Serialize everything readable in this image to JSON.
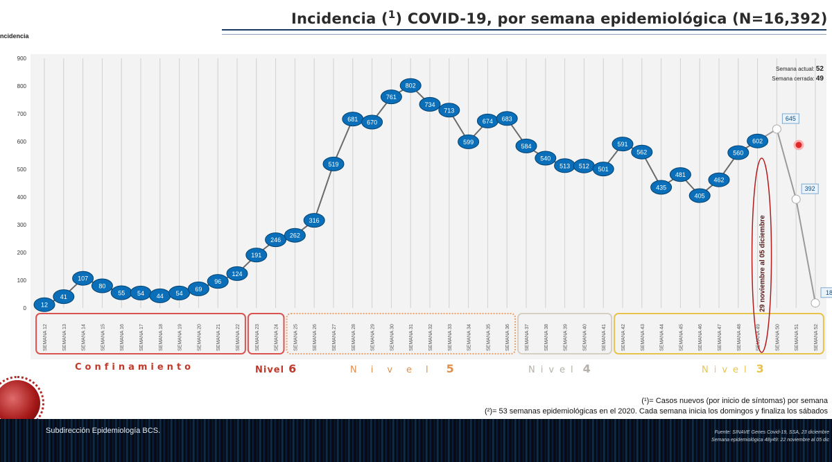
{
  "header": {
    "title": "Incidencia (",
    "title_sup": "1",
    "title_rest": ") COVID-19, por semana epidemiológica (N=16,392)"
  },
  "chart_data": {
    "type": "line",
    "title": "Incidencia (1) COVID-19, por semana epidemiológica (N=16,392)",
    "ylabel": "ncidencia",
    "xlabel": "",
    "ylim": [
      0,
      900
    ],
    "yticks": [
      0,
      100,
      200,
      300,
      400,
      500,
      600,
      700,
      800,
      900
    ],
    "grid": true,
    "categories": [
      "SEMANA 12",
      "SEMANA 13",
      "SEMANA 14",
      "SEMANA 15",
      "SEMANA 16",
      "SEMANA 17",
      "SEMANA 18",
      "SEMANA 19",
      "SEMANA 20",
      "SEMANA 21",
      "SEMANA 22",
      "SEMANA 23",
      "SEMANA 24",
      "SEMANA 25",
      "SEMANA 26",
      "SEMANA 27",
      "SEMANA 28",
      "SEMANA 29",
      "SEMANA 30",
      "SEMANA 31",
      "SEMANA 32",
      "SEMANA 33",
      "SEMANA 34",
      "SEMANA 35",
      "SEMANA 36",
      "SEMANA 37",
      "SEMANA 38",
      "SEMANA 39",
      "SEMANA 40",
      "SEMANA 41",
      "SEMANA 42",
      "SEMANA 43",
      "SEMANA 44",
      "SEMANA 45",
      "SEMANA 46",
      "SEMANA 47",
      "SEMANA 48",
      "SEMANA 49",
      "SEMANA 50",
      "SEMANA 51",
      "SEMANA 52"
    ],
    "series": [
      {
        "name": "cerradas",
        "color": "#0a6fb8",
        "values": [
          12,
          41,
          107,
          80,
          55,
          54,
          44,
          54,
          69,
          96,
          124,
          191,
          246,
          262,
          316,
          519,
          681,
          670,
          761,
          802,
          734,
          713,
          599,
          674,
          683,
          584,
          540,
          513,
          512,
          501,
          591,
          562,
          435,
          481,
          405,
          462,
          560,
          602,
          null,
          null,
          null
        ]
      },
      {
        "name": "abiertas",
        "color": "#ffffff",
        "values": [
          null,
          null,
          null,
          null,
          null,
          null,
          null,
          null,
          null,
          null,
          null,
          null,
          null,
          null,
          null,
          null,
          null,
          null,
          null,
          null,
          null,
          null,
          null,
          null,
          null,
          null,
          null,
          null,
          null,
          null,
          null,
          null,
          null,
          null,
          null,
          null,
          null,
          null,
          645,
          392,
          18
        ]
      }
    ],
    "annotation_vertical": "29 noviembre al 05 diciembre",
    "semana_actual_label": "Semana actual:",
    "semana_actual": "52",
    "semana_cerrada_label": "Semana cerrada:",
    "semana_cerrada": "49"
  },
  "levels": {
    "confinamiento": "Confinamiento",
    "nivel6_word": "Nivel",
    "nivel6_num": "6",
    "nivel5_word": "Nivel",
    "nivel5_num": "5",
    "nivel4_word": "Nivel",
    "nivel4_num": "4",
    "nivel3_word": "Nivel",
    "nivel3_num": "3"
  },
  "colors": {
    "confinamiento": "#d9534f",
    "nivel6": "#d9534f",
    "nivel5": "#e9a36f",
    "nivel4": "#d7cfc4",
    "nivel3": "#e8c34c",
    "point": "#0a6fb8",
    "annotation": "#b01c1c"
  },
  "footnotes": {
    "f1": "(¹)= Casos nuevos (por inicio de síntomas) por semana",
    "f2": "(²)= 53 semanas epidemiológicas en el 2020. Cada semana inicia los domingos y finaliza los sábados"
  },
  "footer": {
    "left": "Subdirección Epidemiología BCS.",
    "right1": "Fuente: SINAVE Genes Covid-19, SSA, 23 diciembre",
    "right2": "Semana epidemiológica 48y49: 22 noviembre al 05 dic"
  }
}
